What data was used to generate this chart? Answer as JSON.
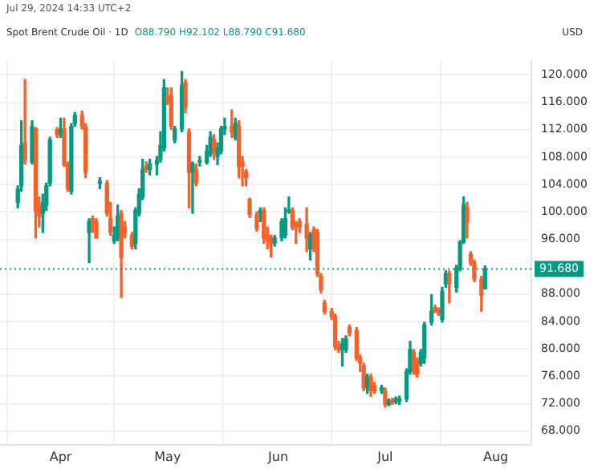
{
  "chart_data": {
    "type": "candlestick",
    "title": "Spot Brent Crude Oil · 1D",
    "ylabel": "USD",
    "annotations": [
      "Jul 29, 2024 14:33 UTC+2",
      "O88.790 H92.102 L88.790 C91.680"
    ],
    "x": [
      "2024-03-20",
      "2024-03-21",
      "2024-03-22",
      "2024-03-24",
      "2024-03-25",
      "2024-03-26",
      "2024-03-27",
      "2024-03-28",
      "2024-03-29",
      "2024-03-31",
      "2024-04-01",
      "2024-04-02",
      "2024-04-03",
      "2024-04-04",
      "2024-04-05",
      "2024-04-07",
      "2024-04-08",
      "2024-04-09",
      "2024-04-10",
      "2024-04-11",
      "2024-04-12",
      "2024-04-14",
      "2024-04-15",
      "2024-04-16",
      "2024-04-17",
      "2024-04-18",
      "2024-04-19",
      "2024-04-21",
      "2024-04-22",
      "2024-04-23",
      "2024-04-24",
      "2024-04-25",
      "2024-04-26",
      "2024-04-28",
      "2024-04-29",
      "2024-04-30",
      "2024-05-01",
      "2024-05-02",
      "2024-05-03",
      "2024-05-05",
      "2024-05-06",
      "2024-05-07",
      "2024-05-08",
      "2024-05-09",
      "2024-05-10",
      "2024-05-12",
      "2024-05-13",
      "2024-05-14",
      "2024-05-15",
      "2024-05-16",
      "2024-05-17",
      "2024-05-19",
      "2024-05-20",
      "2024-05-21",
      "2024-05-22",
      "2024-05-23",
      "2024-05-24",
      "2024-05-26",
      "2024-05-27",
      "2024-05-28",
      "2024-05-29",
      "2024-05-30",
      "2024-05-31",
      "2024-06-02",
      "2024-06-03",
      "2024-06-04",
      "2024-06-05",
      "2024-06-06",
      "2024-06-07",
      "2024-06-09",
      "2024-06-10",
      "2024-06-11",
      "2024-06-12",
      "2024-06-13",
      "2024-06-14",
      "2024-06-16",
      "2024-06-17",
      "2024-06-18",
      "2024-06-19",
      "2024-06-20",
      "2024-06-21",
      "2024-06-23",
      "2024-06-24",
      "2024-06-25",
      "2024-06-26",
      "2024-06-27",
      "2024-06-28",
      "2024-06-30",
      "2024-07-01",
      "2024-07-02",
      "2024-07-03",
      "2024-07-04",
      "2024-07-05",
      "2024-07-07",
      "2024-07-08",
      "2024-07-09",
      "2024-07-10",
      "2024-07-11",
      "2024-07-12",
      "2024-07-14",
      "2024-07-15",
      "2024-07-16",
      "2024-07-17",
      "2024-07-18",
      "2024-07-19",
      "2024-07-21",
      "2024-07-22",
      "2024-07-23",
      "2024-07-24",
      "2024-07-25",
      "2024-07-26",
      "2024-07-28",
      "2024-07-29"
    ],
    "ohlc": [
      [
        101.4,
        103.8,
        100.6,
        103.4
      ],
      [
        103.8,
        113.3,
        103.0,
        109.7
      ],
      [
        110.1,
        119.3,
        107.0,
        107.7
      ],
      [
        107.3,
        113.3,
        107.0,
        112.5
      ],
      [
        112.1,
        112.3,
        96.2,
        100.2
      ],
      [
        100.8,
        102.2,
        97.8,
        99.4
      ],
      [
        99.8,
        102.6,
        97.0,
        101.4
      ],
      [
        101.0,
        104.2,
        100.2,
        103.8
      ],
      [
        104.2,
        110.9,
        103.8,
        110.5
      ],
      [
        112.0,
        112.3,
        110.9,
        111.3
      ],
      [
        111.3,
        113.7,
        110.9,
        112.1
      ],
      [
        112.1,
        113.7,
        106.6,
        106.9
      ],
      [
        106.9,
        107.3,
        103.0,
        103.4
      ],
      [
        103.0,
        112.9,
        102.6,
        112.5
      ],
      [
        112.9,
        114.5,
        112.5,
        114.1
      ],
      [
        114.1,
        114.7,
        112.1,
        112.5
      ],
      [
        112.5,
        112.9,
        105.0,
        105.8
      ],
      [
        97.0,
        99.0,
        92.6,
        98.6
      ],
      [
        99.0,
        99.4,
        97.0,
        98.2
      ],
      [
        98.6,
        99.0,
        96.2,
        96.2
      ],
      [
        104.2,
        105.0,
        103.4,
        104.5
      ],
      [
        104.2,
        104.6,
        99.4,
        99.8
      ],
      [
        99.0,
        101.4,
        96.6,
        97.0
      ],
      [
        95.8,
        97.8,
        95.4,
        96.6
      ],
      [
        96.2,
        101.0,
        95.8,
        99.4
      ],
      [
        99.8,
        100.2,
        87.5,
        93.4
      ],
      [
        97.8,
        98.6,
        96.2,
        97.0
      ],
      [
        96.6,
        97.0,
        94.6,
        95.0
      ],
      [
        95.4,
        100.6,
        94.6,
        100.2
      ],
      [
        99.8,
        103.4,
        99.4,
        102.6
      ],
      [
        102.2,
        107.7,
        101.8,
        106.2
      ],
      [
        106.6,
        107.3,
        105.8,
        106.2
      ],
      [
        106.2,
        107.7,
        105.4,
        107.0
      ],
      [
        107.0,
        108.1,
        105.4,
        107.5
      ],
      [
        107.7,
        111.7,
        107.3,
        109.7
      ],
      [
        109.3,
        119.3,
        108.9,
        118.1
      ],
      [
        116.9,
        118.1,
        115.7,
        116.1
      ],
      [
        116.9,
        118.1,
        112.1,
        112.5
      ],
      [
        110.5,
        112.5,
        110.1,
        112.1
      ],
      [
        112.1,
        120.5,
        111.7,
        118.5
      ],
      [
        118.9,
        119.3,
        114.5,
        115.3
      ],
      [
        111.7,
        112.1,
        100.6,
        105.8
      ],
      [
        105.8,
        107.3,
        99.8,
        107.0
      ],
      [
        106.2,
        107.0,
        103.8,
        104.2
      ],
      [
        107.3,
        108.1,
        106.7,
        107.5
      ],
      [
        107.2,
        109.7,
        107.0,
        108.9
      ],
      [
        108.5,
        111.7,
        108.1,
        110.9
      ],
      [
        110.5,
        111.3,
        107.7,
        108.9
      ],
      [
        108.1,
        110.1,
        106.9,
        109.3
      ],
      [
        108.9,
        112.5,
        108.5,
        112.1
      ],
      [
        112.1,
        113.7,
        111.3,
        112.5
      ],
      [
        112.5,
        114.9,
        110.9,
        111.7
      ],
      [
        110.9,
        113.7,
        110.5,
        112.9
      ],
      [
        112.5,
        113.3,
        105.0,
        106.6
      ],
      [
        107.3,
        108.1,
        103.8,
        106.6
      ],
      [
        105.9,
        106.2,
        103.8,
        105.0
      ],
      [
        101.8,
        102.0,
        99.2,
        99.6
      ],
      [
        99.6,
        100.0,
        97.2,
        97.6
      ],
      [
        99.8,
        100.6,
        98.6,
        100.2
      ],
      [
        100.2,
        100.6,
        95.4,
        96.2
      ],
      [
        96.6,
        97.8,
        94.6,
        95.8
      ],
      [
        96.2,
        96.6,
        93.4,
        95.4
      ],
      [
        95.4,
        96.6,
        95.0,
        96.2
      ],
      [
        96.2,
        99.0,
        95.8,
        98.6
      ],
      [
        96.6,
        100.6,
        96.2,
        99.0
      ],
      [
        100.0,
        102.2,
        99.8,
        100.3
      ],
      [
        100.2,
        100.6,
        97.4,
        97.8
      ],
      [
        98.2,
        98.6,
        95.4,
        97.8
      ],
      [
        98.6,
        99.0,
        97.0,
        97.8
      ],
      [
        98.2,
        100.6,
        94.2,
        96.2
      ],
      [
        94.6,
        97.0,
        93.0,
        96.6
      ],
      [
        97.4,
        97.8,
        94.2,
        94.6
      ],
      [
        97.0,
        97.4,
        90.6,
        91.0
      ],
      [
        90.6,
        91.0,
        88.2,
        88.6
      ],
      [
        86.7,
        87.1,
        85.1,
        85.5
      ],
      [
        85.5,
        85.9,
        84.3,
        84.7
      ],
      [
        84.7,
        85.1,
        79.9,
        80.3
      ],
      [
        80.3,
        81.1,
        79.5,
        79.9
      ],
      [
        79.9,
        81.5,
        77.5,
        80.7
      ],
      [
        79.9,
        81.9,
        79.5,
        81.5
      ],
      [
        83.1,
        83.5,
        81.9,
        82.3
      ],
      [
        82.7,
        83.1,
        78.3,
        78.7
      ],
      [
        78.7,
        79.1,
        76.7,
        77.9
      ],
      [
        77.5,
        77.9,
        73.9,
        74.3
      ],
      [
        74.3,
        76.3,
        73.5,
        75.9
      ],
      [
        75.9,
        76.3,
        73.1,
        73.9
      ],
      [
        74.7,
        75.1,
        73.5,
        73.9
      ],
      [
        73.9,
        74.7,
        73.5,
        74.3
      ],
      [
        73.9,
        74.3,
        71.5,
        71.9
      ],
      [
        71.9,
        72.7,
        71.7,
        72.5
      ],
      [
        72.5,
        72.8,
        71.9,
        72.2
      ],
      [
        72.3,
        73.0,
        72.0,
        72.7
      ],
      [
        72.4,
        73.1,
        71.9,
        72.7
      ],
      [
        72.7,
        77.1,
        72.3,
        76.7
      ],
      [
        76.7,
        81.1,
        76.3,
        79.9
      ],
      [
        79.5,
        79.9,
        76.3,
        76.7
      ],
      [
        78.3,
        78.7,
        75.9,
        76.3
      ],
      [
        77.9,
        79.9,
        77.5,
        79.5
      ],
      [
        78.7,
        83.9,
        77.9,
        83.5
      ],
      [
        83.9,
        87.9,
        83.5,
        85.5
      ],
      [
        86.0,
        86.4,
        85.3,
        85.6
      ],
      [
        85.7,
        86.0,
        84.9,
        85.2
      ],
      [
        84.3,
        89.0,
        83.9,
        88.4
      ],
      [
        89.5,
        91.4,
        89.0,
        91.0
      ],
      [
        91.0,
        91.4,
        86.7,
        89.5
      ],
      [
        89.0,
        92.2,
        88.3,
        91.8
      ],
      [
        91.8,
        95.8,
        91.4,
        95.6
      ],
      [
        95.6,
        102.2,
        95.4,
        101.0
      ],
      [
        100.6,
        101.4,
        96.2,
        98.6
      ],
      [
        93.8,
        94.2,
        92.2,
        92.6
      ],
      [
        92.6,
        93.0,
        89.8,
        90.2
      ],
      [
        90.2,
        90.6,
        85.5,
        87.8
      ],
      [
        88.79,
        92.102,
        88.79,
        91.68
      ]
    ],
    "colors": [
      "#089981",
      "#089981",
      "#f4622a",
      "#089981",
      "#f4622a",
      "#f4622a",
      "#089981",
      "#089981",
      "#089981",
      "#f4622a",
      "#089981",
      "#f4622a",
      "#f4622a",
      "#089981",
      "#089981",
      "#f4622a",
      "#f4622a",
      "#089981",
      "#f4622a",
      "#f4622a",
      "#089981",
      "#f4622a",
      "#f4622a",
      "#089981",
      "#089981",
      "#f4622a",
      "#f4622a",
      "#f4622a",
      "#089981",
      "#089981",
      "#089981",
      "#f4622a",
      "#089981",
      "#089981",
      "#089981",
      "#089981",
      "#f4622a",
      "#f4622a",
      "#089981",
      "#089981",
      "#f4622a",
      "#f4622a",
      "#089981",
      "#f4622a",
      "#089981",
      "#089981",
      "#089981",
      "#f4622a",
      "#089981",
      "#089981",
      "#089981",
      "#f4622a",
      "#089981",
      "#f4622a",
      "#f4622a",
      "#f4622a",
      "#f4622a",
      "#f4622a",
      "#089981",
      "#f4622a",
      "#f4622a",
      "#f4622a",
      "#089981",
      "#089981",
      "#089981",
      "#089981",
      "#f4622a",
      "#f4622a",
      "#f4622a",
      "#f4622a",
      "#089981",
      "#f4622a",
      "#f4622a",
      "#f4622a",
      "#f4622a",
      "#f4622a",
      "#f4622a",
      "#f4622a",
      "#089981",
      "#089981",
      "#f4622a",
      "#f4622a",
      "#f4622a",
      "#f4622a",
      "#089981",
      "#f4622a",
      "#f4622a",
      "#089981",
      "#f4622a",
      "#089981",
      "#f4622a",
      "#089981",
      "#089981",
      "#089981",
      "#089981",
      "#f4622a",
      "#f4622a",
      "#089981",
      "#089981",
      "#089981",
      "#f4622a",
      "#f4622a",
      "#089981",
      "#089981",
      "#f4622a",
      "#089981",
      "#089981",
      "#089981",
      "#f4622a",
      "#f4622a",
      "#f4622a",
      "#f4622a",
      "#089981"
    ],
    "xlim": [
      "2024-03-15",
      "2024-08-11"
    ],
    "xticks": [
      {
        "value": "2024-04-01",
        "label": "Apr"
      },
      {
        "value": "2024-05-01",
        "label": "May"
      },
      {
        "value": "2024-06-01",
        "label": "Jun"
      },
      {
        "value": "2024-07-01",
        "label": "Jul"
      },
      {
        "value": "2024-08-01",
        "label": "Aug"
      }
    ],
    "ylim": [
      66,
      122
    ],
    "yticks": [
      {
        "value": 68,
        "label": "68.000"
      },
      {
        "value": 72,
        "label": "72.000"
      },
      {
        "value": 76,
        "label": "76.000"
      },
      {
        "value": 80,
        "label": "80.000"
      },
      {
        "value": 84,
        "label": "84.000"
      },
      {
        "value": 88,
        "label": "88.000"
      },
      {
        "value": 92,
        "label": null
      },
      {
        "value": 96,
        "label": "96.000"
      },
      {
        "value": 100,
        "label": "100.000"
      },
      {
        "value": 104,
        "label": "104.000"
      },
      {
        "value": 108,
        "label": "108.000"
      },
      {
        "value": 112,
        "label": "112.000"
      },
      {
        "value": 116,
        "label": "116.000"
      },
      {
        "value": 120,
        "label": "120.000"
      }
    ],
    "ref_lines": [
      {
        "axis": "y",
        "value": 91.68,
        "label": "91.680",
        "color": "#089981",
        "line_style": "dotted"
      }
    ],
    "grid": true,
    "legend": false
  }
}
